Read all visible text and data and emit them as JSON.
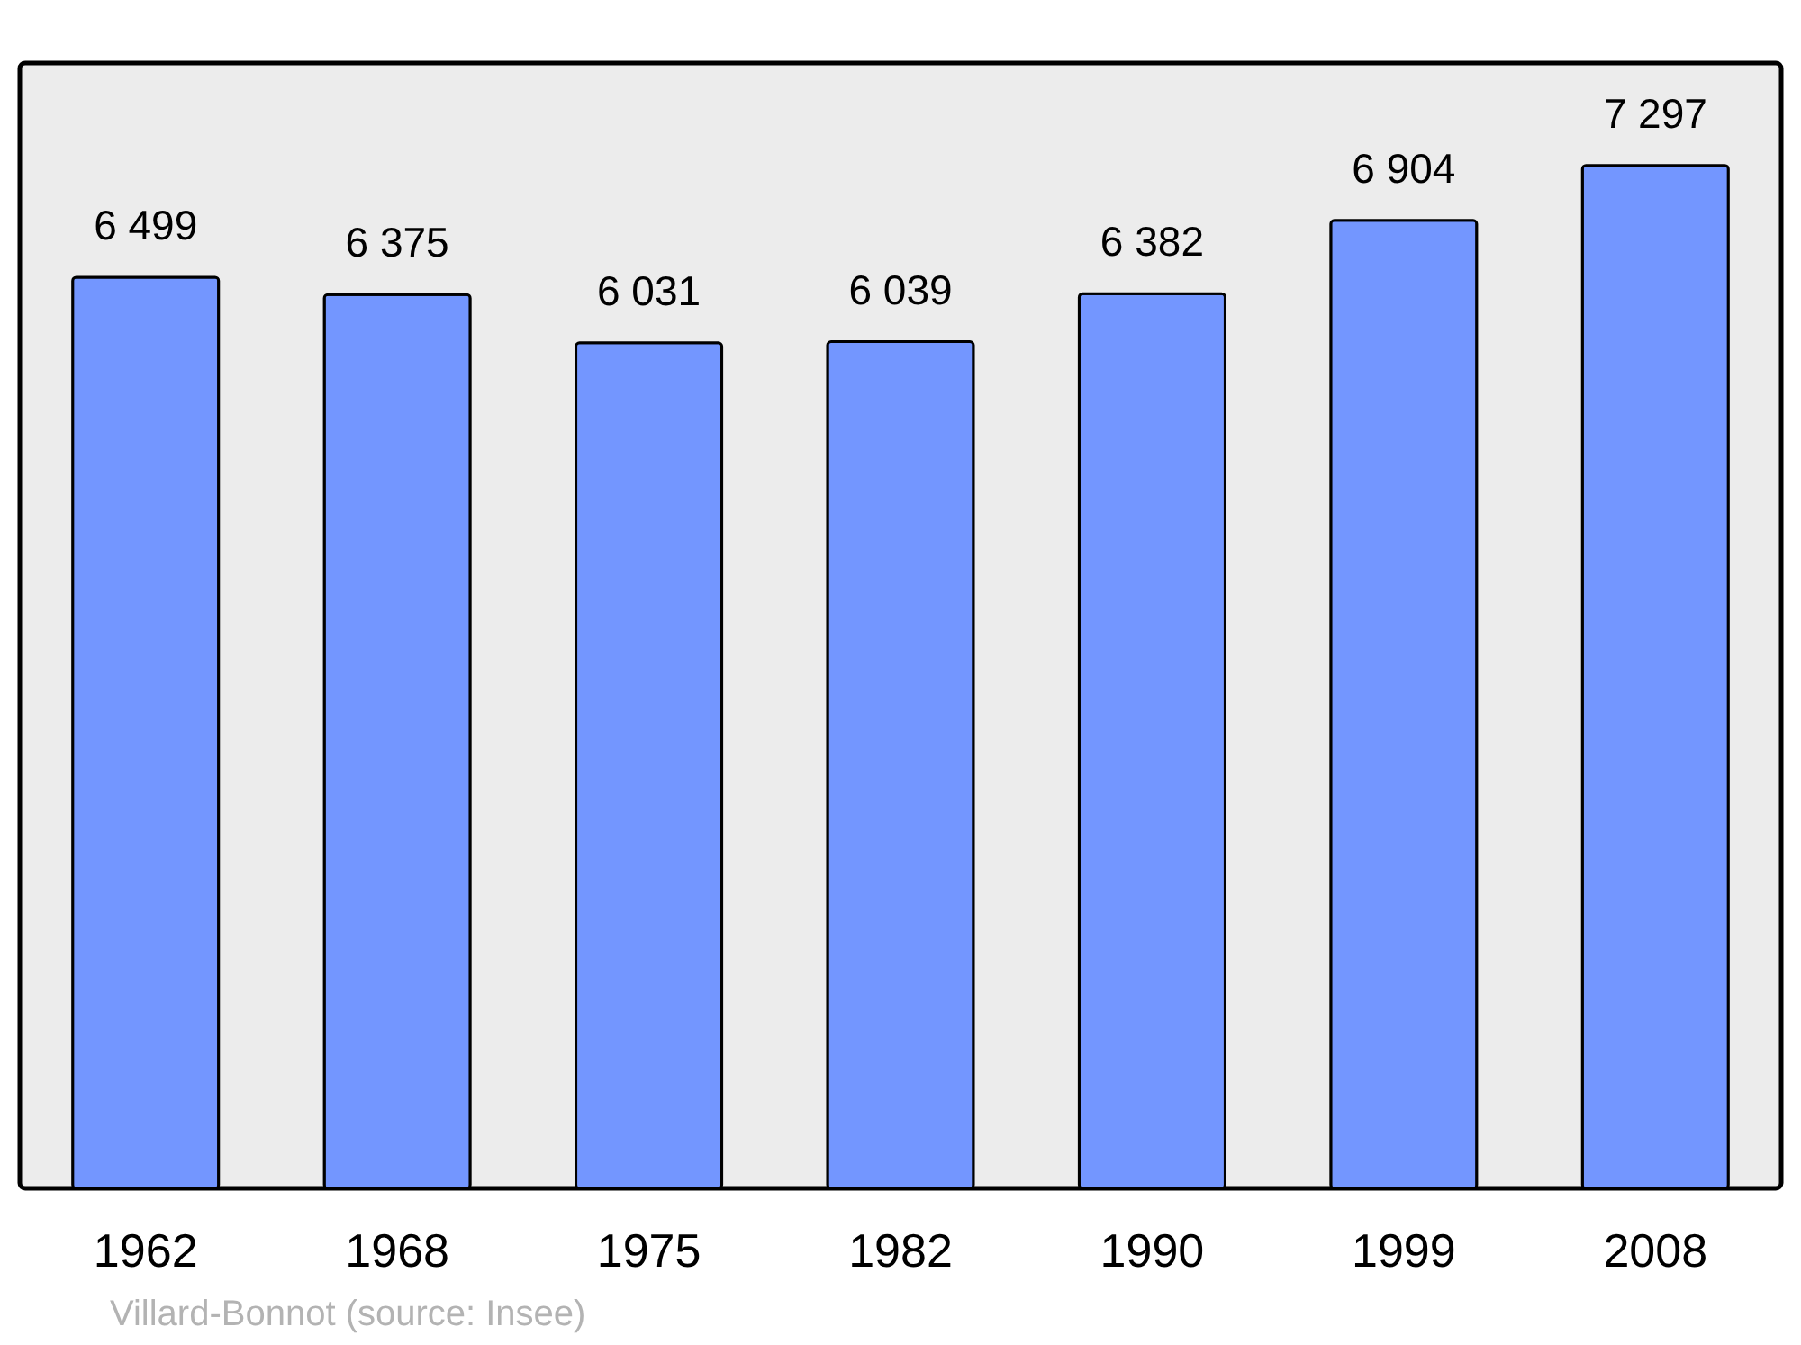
{
  "chart_data": {
    "type": "bar",
    "categories": [
      "1962",
      "1968",
      "1975",
      "1982",
      "1990",
      "1999",
      "2008"
    ],
    "values": [
      6499,
      6375,
      6031,
      6039,
      6382,
      6904,
      7297
    ],
    "value_labels": [
      "6 499",
      "6 375",
      "6 031",
      "6 039",
      "6 382",
      "6 904",
      "7 297"
    ],
    "color": "#7396ff",
    "grid": false,
    "annotations": [
      "Villard-Bonnot    (source: Insee)"
    ]
  }
}
